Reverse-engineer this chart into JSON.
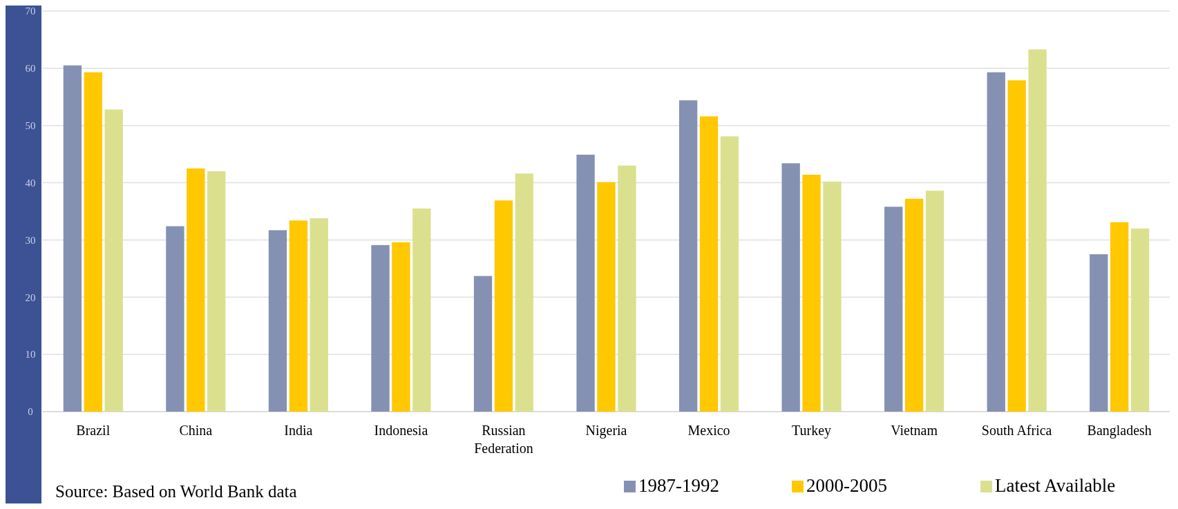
{
  "chart_data": {
    "type": "bar",
    "categories": [
      "Brazil",
      "China",
      "India",
      "Indonesia",
      "Russian Federation",
      "Nigeria",
      "Mexico",
      "Turkey",
      "Vietnam",
      "South Africa",
      "Bangladesh"
    ],
    "series": [
      {
        "name": "1987-1992",
        "color": "#8591b3",
        "values": [
          60.5,
          32.4,
          31.7,
          29.1,
          23.7,
          44.9,
          54.4,
          43.4,
          35.8,
          59.3,
          27.5
        ]
      },
      {
        "name": "2000-2005",
        "color": "#ffc800",
        "values": [
          59.3,
          42.5,
          33.4,
          29.6,
          36.9,
          40.1,
          51.6,
          41.4,
          37.2,
          57.9,
          33.1
        ]
      },
      {
        "name": "Latest Available",
        "color": "#dbe08f",
        "values": [
          52.8,
          42.0,
          33.8,
          35.5,
          41.6,
          43.0,
          48.1,
          40.2,
          38.6,
          63.3,
          32.0
        ]
      }
    ],
    "ylim": [
      0,
      70
    ],
    "yticks": [
      0,
      10,
      20,
      30,
      40,
      50,
      60,
      70
    ],
    "grid": "y",
    "legend": "bottom right",
    "annotations": [
      "Source: Based on World Bank data"
    ]
  }
}
